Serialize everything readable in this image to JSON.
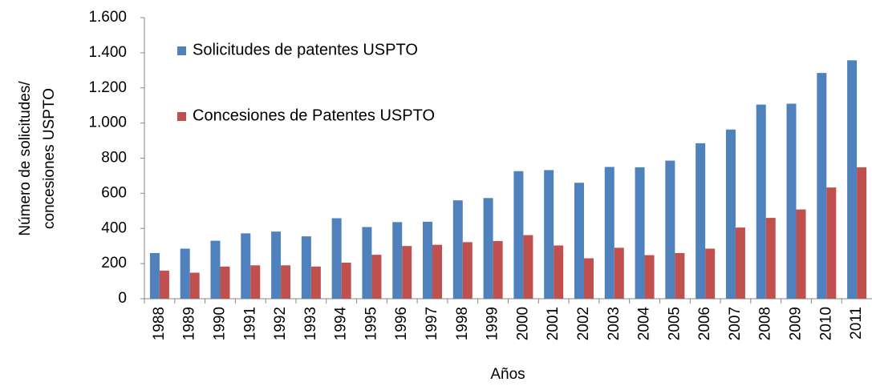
{
  "chart_data": {
    "type": "bar",
    "y_label": [
      "Número de solicitudes/",
      "concesiones USPTO"
    ],
    "x_label": "Años",
    "categories": [
      "1988",
      "1989",
      "1990",
      "1991",
      "1992",
      "1993",
      "1994",
      "1995",
      "1996",
      "1997",
      "1998",
      "1999",
      "2000",
      "2001",
      "2002",
      "2003",
      "2004",
      "2005",
      "2006",
      "2007",
      "2008",
      "2009",
      "2010",
      "2011"
    ],
    "series": [
      {
        "name": "Solicitudes de patentes USPTO",
        "color": "#4f81bd",
        "values": [
          260,
          285,
          330,
          372,
          382,
          355,
          458,
          408,
          436,
          438,
          560,
          573,
          726,
          732,
          660,
          750,
          748,
          786,
          885,
          963,
          1105,
          1110,
          1285,
          1357
        ]
      },
      {
        "name": "Concesiones de Patentes USPTO",
        "color": "#c0504d",
        "values": [
          160,
          148,
          183,
          190,
          190,
          183,
          205,
          250,
          300,
          307,
          322,
          328,
          362,
          303,
          230,
          290,
          248,
          260,
          285,
          405,
          460,
          508,
          633,
          748
        ]
      }
    ],
    "ylim": [
      0,
      1600
    ],
    "yticks": [
      0,
      200,
      400,
      600,
      800,
      {
        "value": 1000,
        "label": "1.000"
      },
      {
        "value": 1200,
        "label": "1.200"
      },
      {
        "value": 1400,
        "label": "1.400"
      },
      {
        "value": 1600,
        "label": "1.600"
      }
    ],
    "legend": "top-left"
  }
}
